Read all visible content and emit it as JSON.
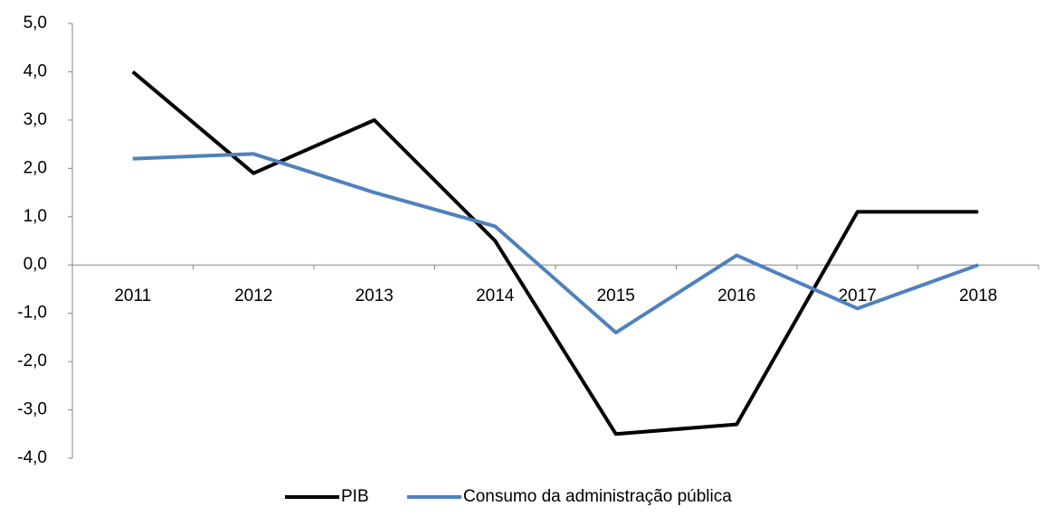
{
  "chart_data": {
    "type": "line",
    "categories": [
      "2011",
      "2012",
      "2013",
      "2014",
      "2015",
      "2016",
      "2017",
      "2018"
    ],
    "series": [
      {
        "name": "PIB",
        "color": "#000000",
        "values": [
          4.0,
          1.9,
          3.0,
          0.5,
          -3.5,
          -3.3,
          1.1,
          1.1
        ]
      },
      {
        "name": "Consumo da administração pública",
        "color": "#4f81bd",
        "values": [
          2.2,
          2.3,
          1.5,
          0.8,
          -1.4,
          0.2,
          -0.9,
          0.0
        ]
      }
    ],
    "ylim": [
      -4,
      5
    ],
    "yticks": [
      {
        "value": -4,
        "label": "-4,0"
      },
      {
        "value": -3,
        "label": "-3,0"
      },
      {
        "value": -2,
        "label": "-2,0"
      },
      {
        "value": -1,
        "label": "-1,0"
      },
      {
        "value": 0,
        "label": "0,0"
      },
      {
        "value": 1,
        "label": "1,0"
      },
      {
        "value": 2,
        "label": "2,0"
      },
      {
        "value": 3,
        "label": "3,0"
      },
      {
        "value": 4,
        "label": "4,0"
      },
      {
        "value": 5,
        "label": "5,0"
      }
    ],
    "grid": false,
    "legend": "bottom"
  }
}
